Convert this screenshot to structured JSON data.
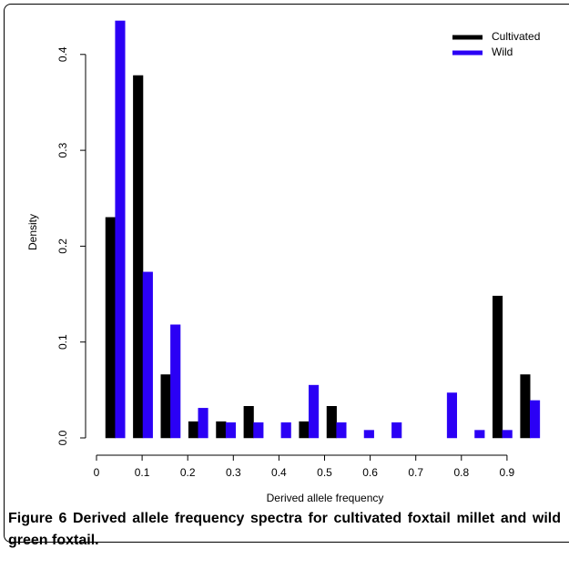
{
  "chart_data": {
    "type": "bar",
    "categories": [
      null,
      null,
      null,
      null,
      null,
      null,
      null,
      null,
      null,
      null,
      null,
      null,
      null,
      null,
      null,
      null
    ],
    "series": [
      {
        "name": "Cultivated",
        "color": "#000000",
        "values": [
          0.23,
          0.378,
          0.066,
          0.017,
          0.017,
          0.033,
          0,
          0.017,
          0.033,
          0,
          0,
          0,
          0,
          0,
          0.148,
          0.066
        ]
      },
      {
        "name": "Wild",
        "color": "#2b00f5",
        "values": [
          0.435,
          0.173,
          0.118,
          0.031,
          0.016,
          0.016,
          0.016,
          0.055,
          0.016,
          0.008,
          0.016,
          0,
          0.047,
          0.008,
          0.008,
          0.039
        ]
      }
    ],
    "xlabel": "Derived allele frequency",
    "ylabel": "Density",
    "xlim": [
      0,
      0.97
    ],
    "xticks": [
      0,
      0.1,
      0.2,
      0.3,
      0.4,
      0.5,
      0.6,
      0.7,
      0.8,
      0.9
    ],
    "ylim": [
      0,
      0.44
    ],
    "yticks": [
      {
        "value": 0,
        "label": "0.0"
      },
      0.1,
      0.2,
      0.3,
      0.4
    ],
    "legend": "top-right"
  },
  "caption": {
    "label": "Figure 6",
    "text": "Derived allele frequency spectra for cultivated foxtail millet and wild green foxtail."
  }
}
